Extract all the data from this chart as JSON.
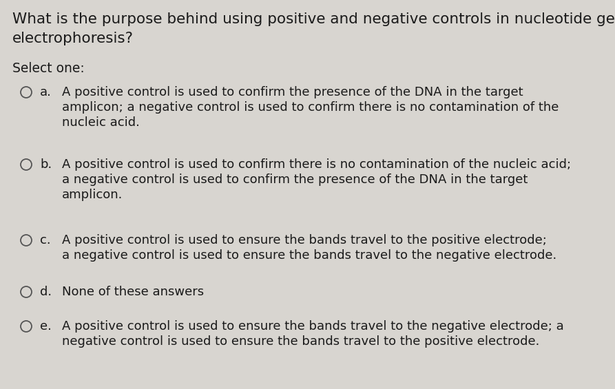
{
  "background_color": "#d8d5d0",
  "question_line1": "What is the purpose behind using positive and negative controls in nucleotide gel",
  "question_line2": "electrophoresis?",
  "select_one": "Select one:",
  "options": [
    {
      "letter": "a.",
      "lines": [
        "A positive control is used to confirm the presence of the DNA in the target",
        "amplicon; a negative control is used to confirm there is no contamination of the",
        "nucleic acid."
      ]
    },
    {
      "letter": "b.",
      "lines": [
        "A positive control is used to confirm there is no contamination of the nucleic acid;",
        "a negative control is used to confirm the presence of the DNA in the target",
        "amplicon."
      ]
    },
    {
      "letter": "c.",
      "lines": [
        "A positive control is used to ensure the bands travel to the positive electrode;",
        "a negative control is used to ensure the bands travel to the negative electrode."
      ]
    },
    {
      "letter": "d.",
      "lines": [
        "None of these answers"
      ]
    },
    {
      "letter": "e.",
      "lines": [
        "A positive control is used to ensure the bands travel to the negative electrode; a",
        "negative control is used to ensure the bands travel to the positive electrode."
      ]
    }
  ],
  "question_fontsize": 15.5,
  "select_fontsize": 13.5,
  "option_letter_fontsize": 13,
  "option_text_fontsize": 13,
  "text_color": "#1a1a1a",
  "circle_color": "#555555"
}
